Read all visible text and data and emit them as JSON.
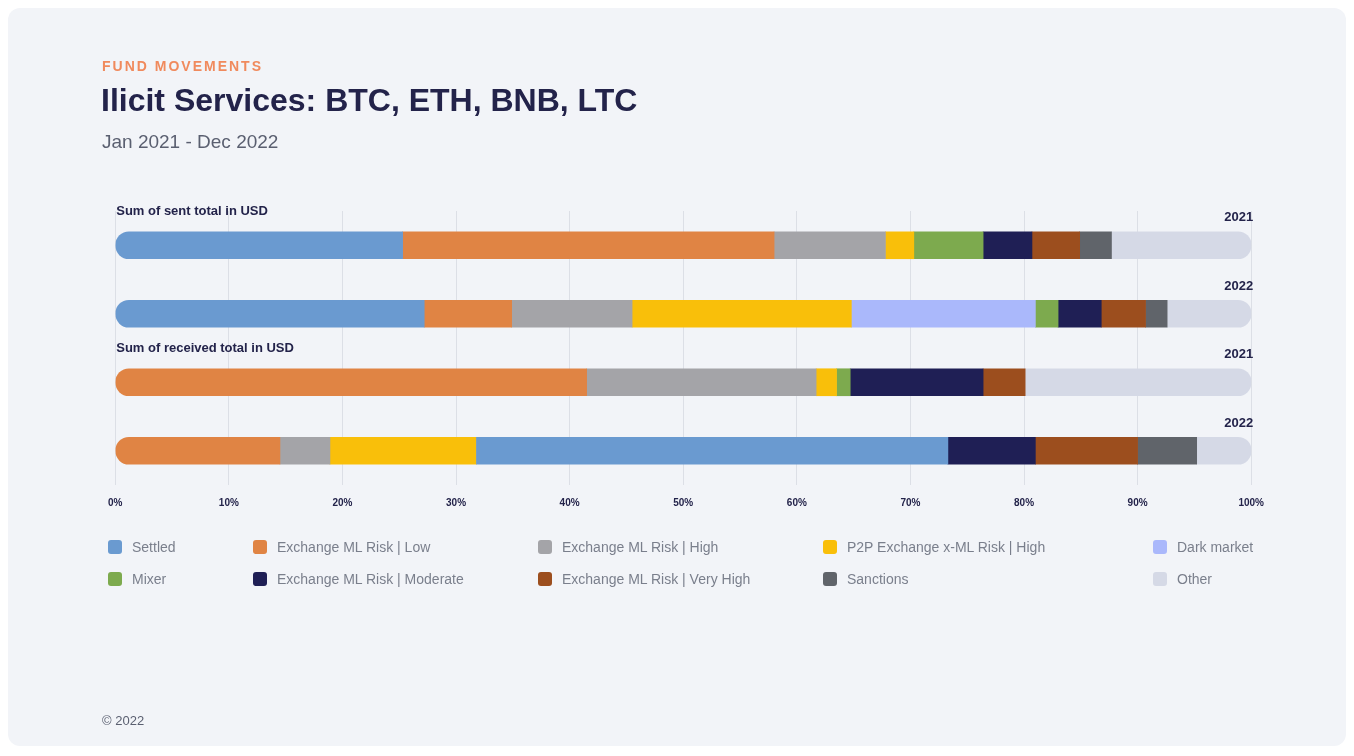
{
  "chart_data": {
    "type": "bar",
    "orientation": "horizontal",
    "title": "Ilicit Services: BTC, ETH, BNB, LTC",
    "subtitle": "Jan 2021 - Dec 2022",
    "annotations": [
      "FUND MOVEMENTS",
      "Sum of sent total in USD",
      "Sum of received total in USD",
      "© 2022"
    ],
    "categories": [
      "2021",
      "2022",
      "2021",
      "2022"
    ],
    "series": [
      {
        "name": "Settled",
        "color": "#6a9ad0",
        "values": [
          25.3,
          27.2,
          null,
          41.5
        ],
        "base": [
          0,
          0,
          null,
          31.8
        ]
      },
      {
        "name": "Exchange ML Risk | Low",
        "color": "#e08444",
        "values": [
          32.7,
          7.7,
          41.5,
          14.5
        ],
        "base": [
          25.3,
          27.2,
          0,
          0
        ]
      },
      {
        "name": "Exchange ML Risk | High",
        "color": "#a4a4a8",
        "values": [
          9.8,
          10.6,
          20.2,
          4.4
        ],
        "base": [
          58.0,
          34.9,
          41.5,
          14.5
        ]
      },
      {
        "name": "P2P Exchange x-ML Risk | High",
        "color": "#f9bf0a",
        "values": [
          2.5,
          19.3,
          1.8,
          12.9
        ],
        "base": [
          67.8,
          45.5,
          61.7,
          18.9
        ]
      },
      {
        "name": "Dark market",
        "color": "#aab8fb",
        "values": [
          null,
          16.2,
          null,
          null
        ],
        "base": [
          null,
          64.8,
          null,
          null
        ]
      },
      {
        "name": "Mixer",
        "color": "#7daa4e",
        "values": [
          6.1,
          2.0,
          1.2,
          null
        ],
        "base": [
          70.3,
          81.0,
          63.5,
          null
        ]
      },
      {
        "name": "Exchange ML Risk | Moderate",
        "color": "#1f1f55",
        "values": [
          4.3,
          3.8,
          11.7,
          7.7
        ],
        "base": [
          76.4,
          83.0,
          64.7,
          73.3
        ]
      },
      {
        "name": "Exchange ML Risk | Very High",
        "color": "#9c4e1e",
        "values": [
          4.2,
          3.9,
          3.7,
          9.0
        ],
        "base": [
          80.7,
          86.8,
          76.4,
          81.0
        ]
      },
      {
        "name": "Sanctions",
        "color": "#60646a",
        "values": [
          2.8,
          1.9,
          null,
          5.2
        ],
        "base": [
          84.9,
          90.7,
          null,
          90.0
        ]
      },
      {
        "name": "Other",
        "color": "#d5d9e6",
        "values": [
          12.3,
          7.4,
          19.9,
          4.8
        ],
        "base": [
          87.7,
          92.6,
          80.1,
          95.2
        ]
      }
    ],
    "xlim": [
      0,
      100
    ],
    "xticks": [
      {
        "value": 0,
        "label": "0%"
      },
      {
        "value": 10,
        "label": "10%"
      },
      {
        "value": 20,
        "label": "20%"
      },
      {
        "value": 30,
        "label": "30%"
      },
      {
        "value": 40,
        "label": "40%"
      },
      {
        "value": 50,
        "label": "50%"
      },
      {
        "value": 60,
        "label": "60%"
      },
      {
        "value": 70,
        "label": "70%"
      },
      {
        "value": 80,
        "label": "80%"
      },
      {
        "value": 90,
        "label": "90%"
      },
      {
        "value": 100,
        "label": "100%"
      }
    ],
    "grid": "x",
    "legend": "bottom"
  }
}
